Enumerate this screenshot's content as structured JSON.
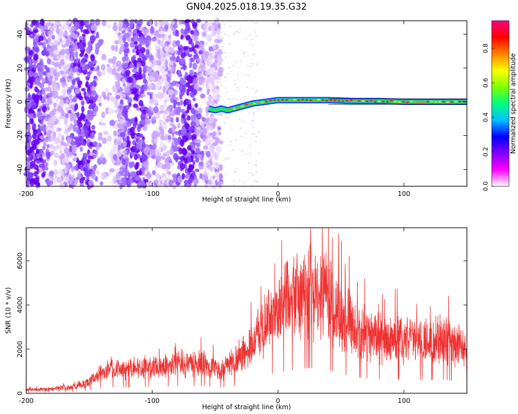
{
  "title": "GN04.2025.018.19.35.G32",
  "colors": {
    "signal_red": "#ee3333",
    "noise_purple": "#6600ee",
    "line_green": "#22ee22",
    "colorbar": [
      "#ffffff",
      "#ff00ff",
      "#8000ff",
      "#0000ff",
      "#00c0ff",
      "#00ff80",
      "#80ff00",
      "#ffff00",
      "#ff8000",
      "#ff0000",
      "#ff0080"
    ]
  },
  "chart_data": [
    {
      "type": "heatmap",
      "xlabel": "Height of straight line (km)",
      "ylabel": "Frequency (Hz)",
      "xlim": [
        -200,
        150
      ],
      "ylim": [
        -50,
        48
      ],
      "x_ticks": [
        -200,
        -100,
        0,
        100
      ],
      "y_ticks": [
        -40,
        -20,
        0,
        20,
        40
      ],
      "noise_region_x": [
        -200,
        -45
      ],
      "signal_track": {
        "x": [
          -55,
          -50,
          -45,
          -40,
          -30,
          -20,
          -10,
          0,
          20,
          40,
          60,
          80,
          100,
          120,
          150
        ],
        "frequency": [
          -4,
          -5,
          -4,
          -5,
          -3,
          -1,
          0,
          1,
          1,
          1,
          0.5,
          0.5,
          0,
          0,
          0
        ]
      },
      "colorbar": {
        "label": "Normalized spectral amplitude",
        "range": [
          0,
          0.96
        ],
        "ticks": [
          "0.0",
          "0.2",
          "0.4",
          "0.6",
          "0.8"
        ]
      },
      "grid": false
    },
    {
      "type": "line",
      "xlabel": "Height of straight line (km)",
      "ylabel": "SNR (10 * v/v)",
      "xlim": [
        -200,
        150
      ],
      "ylim": [
        0,
        7500
      ],
      "x_ticks": [
        -200,
        -100,
        0,
        100
      ],
      "y_ticks": [
        0,
        2000,
        4000,
        6000
      ],
      "series": [
        {
          "x": [
            -200,
            -180,
            -160,
            -150,
            -140,
            -130,
            -120,
            -100,
            -80,
            -60,
            -45,
            -40,
            -30,
            -20,
            -10,
            0,
            10,
            20,
            30,
            40,
            50,
            60,
            70,
            80,
            90,
            100,
            110,
            120,
            130,
            140,
            150
          ],
          "values": [
            150,
            200,
            300,
            500,
            1000,
            1100,
            1050,
            1150,
            1300,
            1300,
            1000,
            1200,
            1600,
            2300,
            3200,
            3800,
            4200,
            4500,
            4600,
            4300,
            3500,
            3000,
            2700,
            2500,
            2400,
            2500,
            2400,
            2400,
            2500,
            2200,
            2000
          ]
        }
      ],
      "grid": false
    }
  ]
}
